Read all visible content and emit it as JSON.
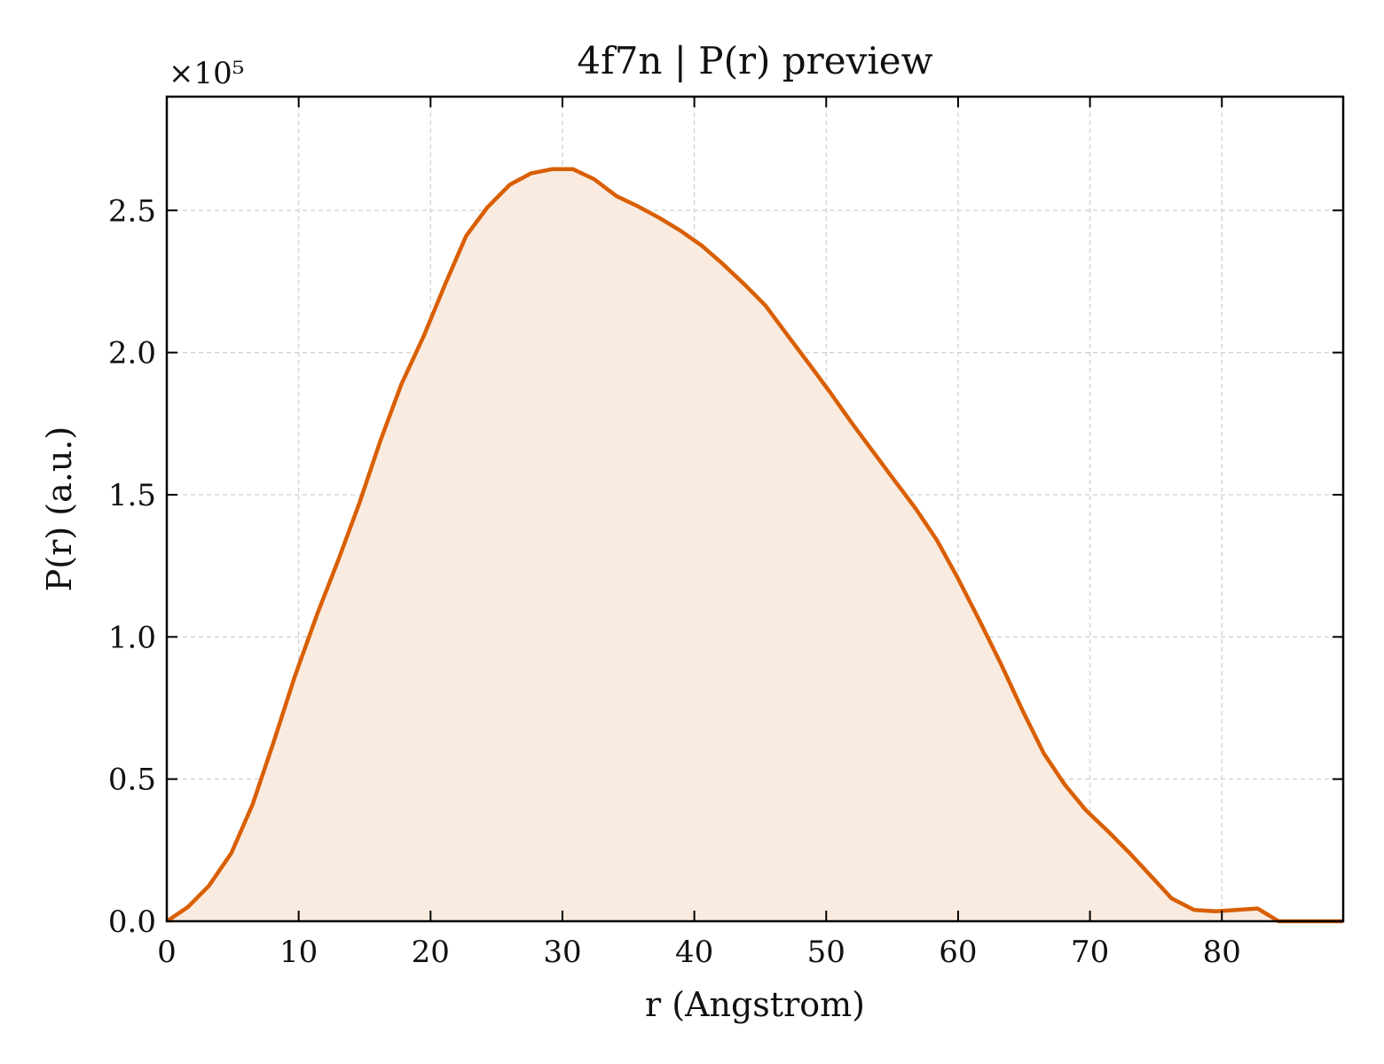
{
  "chart_data": {
    "type": "area",
    "title": "4f7n | P(r) preview",
    "xlabel": "r (Angstrom)",
    "ylabel": "P(r) (a.u.)",
    "y_multiplier_label": "×10⁵",
    "y_scale_factor": 100000,
    "xlim": [
      0,
      89.2
    ],
    "ylim": [
      0,
      2.9
    ],
    "x_ticks": [
      0,
      10,
      20,
      30,
      40,
      50,
      60,
      70,
      80
    ],
    "x_tick_labels": [
      "0",
      "10",
      "20",
      "30",
      "40",
      "50",
      "60",
      "70",
      "80"
    ],
    "y_ticks": [
      0,
      0.5,
      1.0,
      1.5,
      2.0,
      2.5
    ],
    "y_tick_labels": [
      "0.0",
      "0.5",
      "1.0",
      "1.5",
      "2.0",
      "2.5"
    ],
    "grid": true,
    "colors": {
      "line": "#d95f02",
      "fill": "#f9ebe0",
      "grid": "#d0d0d0"
    },
    "series": [
      {
        "x": [
          0,
          1.6,
          3.2,
          4.9,
          6.5,
          8.1,
          9.7,
          11.4,
          13.0,
          14.6,
          16.2,
          17.8,
          19.5,
          21.1,
          22.7,
          24.3,
          26.0,
          27.6,
          29.2,
          30.8,
          32.4,
          34.1,
          35.7,
          37.3,
          38.9,
          40.6,
          42.2,
          43.8,
          45.4,
          47.0,
          48.7,
          50.3,
          51.9,
          53.5,
          55.1,
          56.8,
          58.4,
          60.0,
          61.6,
          63.3,
          64.9,
          66.5,
          68.1,
          69.7,
          71.4,
          73.0,
          74.6,
          76.2,
          77.9,
          79.5,
          81.1,
          82.7,
          84.3,
          86.0,
          87.6,
          89.2
        ],
        "values": [
          0.0,
          0.05,
          0.125,
          0.24,
          0.41,
          0.63,
          0.86,
          1.08,
          1.27,
          1.47,
          1.69,
          1.89,
          2.06,
          2.24,
          2.41,
          2.51,
          2.59,
          2.63,
          2.645,
          2.645,
          2.61,
          2.55,
          2.515,
          2.475,
          2.43,
          2.375,
          2.31,
          2.24,
          2.165,
          2.065,
          1.96,
          1.86,
          1.755,
          1.655,
          1.555,
          1.45,
          1.34,
          1.205,
          1.06,
          0.9,
          0.74,
          0.59,
          0.48,
          0.39,
          0.315,
          0.24,
          0.16,
          0.08,
          0.04,
          0.035,
          0.04,
          0.045,
          0.0,
          0.0,
          0.0,
          0.0
        ]
      }
    ]
  }
}
